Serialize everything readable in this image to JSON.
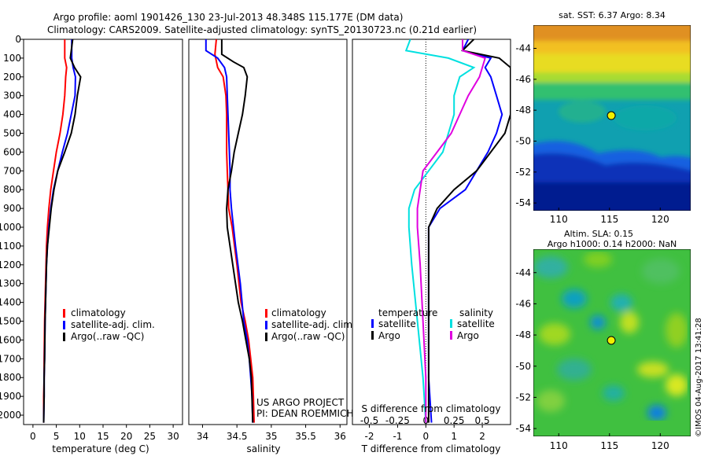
{
  "header": {
    "line1": "Argo profile: aoml 1901426_130 23-Jul-2013 48.348S 115.177E (DM data)",
    "line2": "Climatology: CARS2009. Satellite-adjusted climatology: synTS_20130723.nc (0.21d earlier)"
  },
  "colors": {
    "climatology": "#ff0000",
    "satellite": "#0000ff",
    "argo": "#000000",
    "satellite_salinity": "#00e0e0",
    "argo_salinity": "#e000e0"
  },
  "credits": {
    "project": "US ARGO PROJECT",
    "pi": "PI: DEAN ROEMMICH",
    "stamp": "©IMOS 04-Aug-2017 13:41:28"
  },
  "chart_data": [
    {
      "type": "line",
      "panel": "temperature",
      "xlabel": "temperature (deg C)",
      "ylabel": "",
      "xlim": [
        -2,
        32
      ],
      "ylim": [
        2050,
        0
      ],
      "xticks": [
        "0",
        "5",
        "10",
        "15",
        "20",
        "25",
        "30"
      ],
      "yticks": [
        "0",
        "100",
        "200",
        "300",
        "400",
        "500",
        "600",
        "700",
        "800",
        "900",
        "1000",
        "1100",
        "1200",
        "1300",
        "1400",
        "1500",
        "1600",
        "1700",
        "1800",
        "1900",
        "2000"
      ],
      "legend": [
        "climatology",
        "satellite-adj. clim.",
        "Argo(..raw -QC)"
      ],
      "legend_position": "lower-center",
      "series": [
        {
          "name": "climatology",
          "color": "#ff0000",
          "x": [
            6.8,
            6.8,
            7.2,
            7.0,
            6.8,
            6.4,
            5.8,
            5.0,
            4.4,
            3.8,
            3.4,
            3.1,
            2.9,
            2.8,
            2.7,
            2.6,
            2.5,
            2.4,
            2.4,
            2.3,
            2.3
          ],
          "y": [
            0,
            100,
            150,
            200,
            300,
            400,
            500,
            600,
            700,
            800,
            900,
            1000,
            1100,
            1200,
            1300,
            1400,
            1500,
            1700,
            1800,
            1900,
            2040
          ]
        },
        {
          "name": "satellite-adj. clim.",
          "color": "#0000ff",
          "x": [
            8.3,
            8.3,
            8.6,
            9.1,
            9.0,
            8.2,
            7.4,
            6.3,
            5.3,
            4.4,
            3.8,
            3.4,
            3.1,
            2.9,
            2.8,
            2.7,
            2.6,
            2.5,
            2.4,
            2.4,
            2.3
          ],
          "y": [
            0,
            100,
            150,
            200,
            300,
            400,
            500,
            600,
            700,
            800,
            900,
            1000,
            1100,
            1200,
            1300,
            1400,
            1500,
            1700,
            1800,
            1900,
            2040
          ]
        },
        {
          "name": "Argo(..raw -QC)",
          "color": "#000000",
          "x": [
            8.5,
            8.0,
            8.9,
            10.2,
            9.5,
            9.0,
            8.2,
            6.8,
            5.3,
            4.5,
            3.9,
            3.5,
            3.1,
            2.9,
            2.8,
            2.7,
            2.6,
            2.5,
            2.4,
            2.4,
            2.3
          ],
          "y": [
            0,
            100,
            150,
            200,
            300,
            400,
            500,
            600,
            700,
            800,
            900,
            1000,
            1100,
            1200,
            1300,
            1400,
            1500,
            1700,
            1800,
            1900,
            2040
          ]
        }
      ]
    },
    {
      "type": "line",
      "panel": "salinity",
      "xlabel": "salinity",
      "ylabel": "",
      "xlim": [
        33.8,
        36.1
      ],
      "ylim": [
        2050,
        0
      ],
      "xticks": [
        "34",
        "34.5",
        "35",
        "35.5",
        "36"
      ],
      "legend": [
        "climatology",
        "satellite-adj. clim.",
        "Argo(..raw -QC)"
      ],
      "legend_position": "lower-right",
      "series": [
        {
          "name": "climatology",
          "color": "#ff0000",
          "x": [
            34.2,
            34.18,
            34.22,
            34.3,
            34.34,
            34.35,
            34.35,
            34.35,
            34.36,
            34.37,
            34.38,
            34.43,
            34.5,
            34.56,
            34.62,
            34.67,
            34.7,
            34.73,
            34.74,
            34.75
          ],
          "y": [
            0,
            80,
            150,
            200,
            300,
            400,
            500,
            600,
            700,
            800,
            900,
            1000,
            1200,
            1400,
            1500,
            1600,
            1700,
            1800,
            1900,
            2040
          ]
        },
        {
          "name": "satellite-adj. clim.",
          "color": "#0000ff",
          "x": [
            34.05,
            34.05,
            34.22,
            34.32,
            34.35,
            34.36,
            34.37,
            34.38,
            34.39,
            34.4,
            34.4,
            34.42,
            34.48,
            34.55,
            34.6,
            34.65,
            34.68,
            34.7,
            34.72,
            34.73
          ],
          "y": [
            0,
            60,
            100,
            150,
            200,
            300,
            400,
            500,
            600,
            700,
            800,
            900,
            1100,
            1300,
            1500,
            1600,
            1700,
            1800,
            1900,
            2040
          ]
        },
        {
          "name": "Argo(..raw -QC)",
          "color": "#000000",
          "x": [
            34.28,
            34.28,
            34.45,
            34.6,
            34.65,
            34.62,
            34.58,
            34.52,
            34.46,
            34.42,
            34.37,
            34.35,
            34.36,
            34.44,
            34.52,
            34.58,
            34.63,
            34.68,
            34.71,
            34.73
          ],
          "y": [
            0,
            80,
            120,
            150,
            200,
            300,
            400,
            500,
            600,
            700,
            800,
            900,
            1000,
            1200,
            1400,
            1500,
            1600,
            1700,
            1800,
            2040
          ]
        }
      ]
    },
    {
      "type": "line",
      "panel": "difference",
      "xlabel": "T difference from climatology",
      "xlabel_top": "S difference from climatology",
      "xlim": [
        -2.6,
        3.0
      ],
      "xticks": [
        "-2",
        "-1",
        "0",
        "1",
        "2"
      ],
      "xticks_top": [
        "-0.5",
        "-0.25",
        "0",
        "0.25",
        "0.5"
      ],
      "ylim": [
        2050,
        0
      ],
      "legend_headers": [
        "temperature",
        "salinity"
      ],
      "legend": [
        "satellite",
        "Argo",
        "satellite",
        "Argo"
      ],
      "legend_position": "lower-center",
      "series": [
        {
          "name": "satellite",
          "group": "temperature",
          "color": "#0000ff",
          "x": [
            1.5,
            1.3,
            2.3,
            2.1,
            2.3,
            2.5,
            2.7,
            2.5,
            2.2,
            1.8,
            1.4,
            0.5,
            0.1,
            0.1,
            0.1,
            0.1,
            0.2
          ],
          "y": [
            0,
            60,
            100,
            150,
            200,
            300,
            400,
            500,
            600,
            700,
            800,
            900,
            1000,
            1200,
            1500,
            1800,
            2040
          ]
        },
        {
          "name": "Argo",
          "group": "temperature",
          "color": "#000000",
          "x": [
            1.7,
            1.3,
            2.6,
            3.0,
            3.0,
            3.0,
            3.0,
            2.8,
            2.3,
            1.8,
            1.0,
            0.4,
            0.1,
            0.1,
            0.1,
            0.1,
            0.1
          ],
          "y": [
            0,
            60,
            100,
            150,
            200,
            300,
            400,
            500,
            600,
            700,
            800,
            900,
            1000,
            1200,
            1500,
            1800,
            2040
          ]
        },
        {
          "name": "satellite",
          "group": "salinity",
          "color": "#00e0e0",
          "x": [
            -0.55,
            -0.7,
            0.8,
            1.7,
            1.2,
            1.0,
            1.0,
            0.8,
            0.6,
            0.1,
            -0.4,
            -0.6,
            -0.6,
            -0.5,
            -0.3,
            -0.1,
            0.0
          ],
          "y": [
            0,
            60,
            100,
            150,
            200,
            300,
            400,
            500,
            600,
            700,
            800,
            900,
            1000,
            1200,
            1500,
            1800,
            2040
          ]
        },
        {
          "name": "Argo",
          "group": "salinity",
          "color": "#e000e0",
          "x": [
            1.3,
            1.3,
            2.1,
            2.0,
            1.9,
            1.5,
            1.2,
            0.9,
            0.4,
            -0.1,
            -0.2,
            -0.3,
            -0.3,
            -0.2,
            -0.1,
            0.0,
            0.0
          ],
          "y": [
            0,
            60,
            100,
            150,
            200,
            300,
            400,
            500,
            600,
            700,
            800,
            900,
            1000,
            1200,
            1500,
            1800,
            2040
          ]
        }
      ]
    },
    {
      "type": "heatmap",
      "panel": "sst-map",
      "title": "sat. SST: 6.37 Argo: 8.34",
      "xlim": [
        107.5,
        123
      ],
      "ylim": [
        -54.5,
        -42.5
      ],
      "xticks": [
        "110",
        "115",
        "120"
      ],
      "yticks": [
        "-44",
        "-46",
        "-48",
        "-50",
        "-52",
        "-54"
      ],
      "marker": {
        "lon": 115.177,
        "lat": -48.348
      }
    },
    {
      "type": "heatmap",
      "panel": "sla-map",
      "title": "Altim. SLA: 0.15",
      "subtitle": "Argo h1000: 0.14 h2000: NaN",
      "xlim": [
        107.5,
        123
      ],
      "ylim": [
        -54.5,
        -42.5
      ],
      "xticks": [
        "110",
        "115",
        "120"
      ],
      "yticks": [
        "-44",
        "-46",
        "-48",
        "-50",
        "-52",
        "-54"
      ],
      "marker": {
        "lon": 115.177,
        "lat": -48.348
      }
    }
  ]
}
